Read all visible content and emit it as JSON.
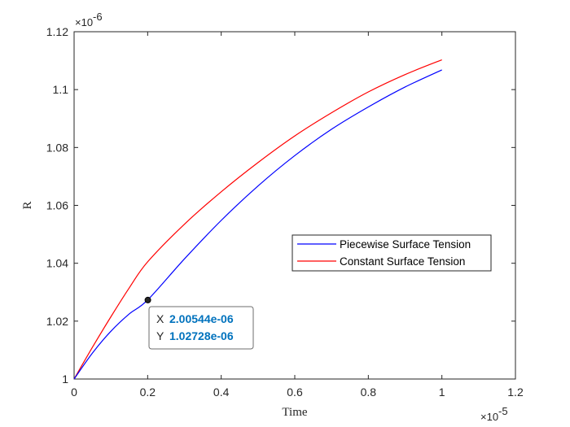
{
  "chart_data": {
    "type": "line",
    "title": "",
    "xlabel": "Time",
    "ylabel": "R",
    "x_multiplier_label": "×10",
    "x_multiplier_exp": "-5",
    "y_multiplier_label": "×10",
    "y_multiplier_exp": "-6",
    "xlim": [
      0,
      1.2
    ],
    "ylim": [
      1.0,
      1.12
    ],
    "x_ticks": [
      0,
      0.2,
      0.4,
      0.6,
      0.8,
      1.0,
      1.2
    ],
    "x_tick_labels": [
      "0",
      "0.2",
      "0.4",
      "0.6",
      "0.8",
      "1",
      "1.2"
    ],
    "y_ticks": [
      1.0,
      1.02,
      1.04,
      1.06,
      1.08,
      1.1,
      1.12
    ],
    "y_tick_labels": [
      "1",
      "1.02",
      "1.04",
      "1.06",
      "1.08",
      "1.1",
      "1.12"
    ],
    "grid": false,
    "legend_position": "center-right",
    "series": [
      {
        "name": "Piecewise Surface Tension",
        "color": "#0000ff",
        "x": [
          0,
          0.05,
          0.1,
          0.15,
          0.2,
          0.3,
          0.4,
          0.5,
          0.6,
          0.7,
          0.8,
          0.9,
          1.0
        ],
        "y": [
          1.0,
          1.009,
          1.0165,
          1.0225,
          1.0273,
          1.0415,
          1.0548,
          1.0667,
          1.0772,
          1.0863,
          1.094,
          1.1009,
          1.1068
        ]
      },
      {
        "name": "Constant Surface Tension",
        "color": "#ff0000",
        "x": [
          0,
          0.05,
          0.1,
          0.15,
          0.2,
          0.3,
          0.4,
          0.5,
          0.6,
          0.7,
          0.8,
          0.9,
          1.0
        ],
        "y": [
          1.0,
          1.011,
          1.0215,
          1.0315,
          1.0405,
          1.0535,
          1.0647,
          1.0748,
          1.084,
          1.092,
          1.0992,
          1.1052,
          1.1103
        ]
      }
    ],
    "datatip": {
      "x_label": "X",
      "x_value": "2.00544e-06",
      "y_label": "Y",
      "y_value": "1.02728e-06",
      "point_x": 0.200544,
      "point_y": 1.02728,
      "value_color": "#0072bd"
    }
  }
}
